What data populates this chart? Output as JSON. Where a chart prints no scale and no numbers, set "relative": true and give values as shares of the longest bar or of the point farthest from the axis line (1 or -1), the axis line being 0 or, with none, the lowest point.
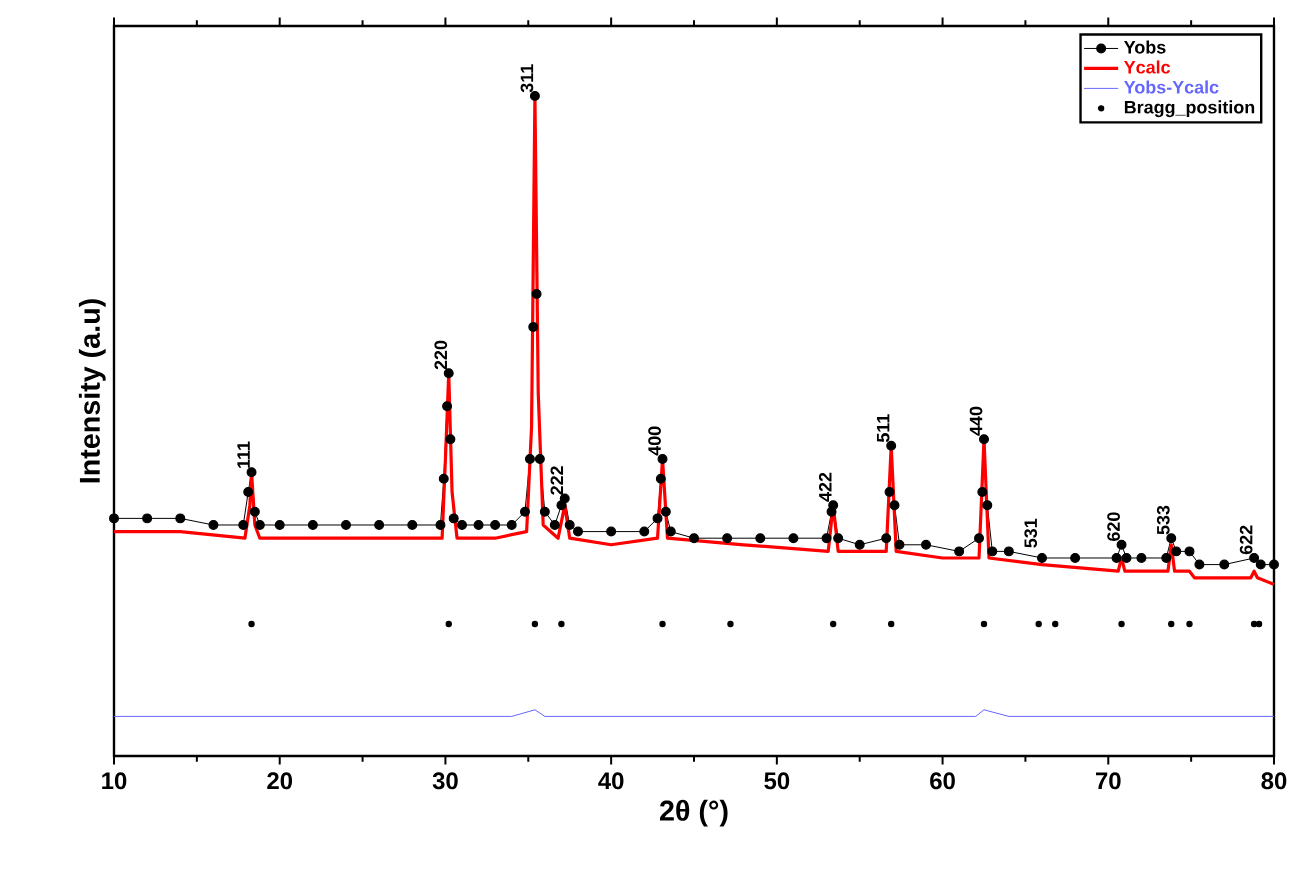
{
  "chart_data": {
    "type": "line",
    "relative": true,
    "xlabel": "2θ (°)",
    "ylabel": "Intensity (a.u)",
    "xlim": [
      10,
      80
    ],
    "xticks": [
      10,
      20,
      30,
      40,
      50,
      60,
      70,
      80
    ],
    "legend": "top right",
    "series": [
      {
        "name": "Yobs",
        "marker": "circle",
        "color": "#000000",
        "x": [
          10,
          12,
          14,
          16,
          17.8,
          18.1,
          18.3,
          18.5,
          18.8,
          20,
          22,
          24,
          26,
          28,
          29.7,
          29.9,
          30.1,
          30.2,
          30.3,
          30.5,
          31,
          32,
          33,
          34,
          34.8,
          35.1,
          35.3,
          35.4,
          35.5,
          35.7,
          36,
          36.6,
          37.0,
          37.2,
          37.5,
          38,
          40,
          42,
          42.8,
          43.0,
          43.1,
          43.3,
          43.6,
          45,
          47,
          49,
          51,
          53.0,
          53.3,
          53.4,
          53.7,
          55,
          56.6,
          56.8,
          56.9,
          57.1,
          57.4,
          59,
          61,
          62.2,
          62.4,
          62.5,
          62.7,
          63.0,
          64,
          66,
          68,
          70.5,
          70.8,
          71.1,
          72,
          73.5,
          73.8,
          74.1,
          74.9,
          75.5,
          77,
          78.8,
          79.2,
          80
        ],
        "values": [
          0.36,
          0.36,
          0.36,
          0.35,
          0.35,
          0.4,
          0.43,
          0.37,
          0.35,
          0.35,
          0.35,
          0.35,
          0.35,
          0.35,
          0.35,
          0.42,
          0.53,
          0.58,
          0.48,
          0.36,
          0.35,
          0.35,
          0.35,
          0.35,
          0.37,
          0.45,
          0.65,
          1.0,
          0.7,
          0.45,
          0.37,
          0.35,
          0.38,
          0.39,
          0.35,
          0.34,
          0.34,
          0.34,
          0.36,
          0.42,
          0.45,
          0.37,
          0.34,
          0.33,
          0.33,
          0.33,
          0.33,
          0.33,
          0.37,
          0.38,
          0.33,
          0.32,
          0.33,
          0.4,
          0.47,
          0.38,
          0.32,
          0.32,
          0.31,
          0.33,
          0.4,
          0.48,
          0.38,
          0.31,
          0.31,
          0.3,
          0.3,
          0.3,
          0.32,
          0.3,
          0.3,
          0.3,
          0.33,
          0.31,
          0.31,
          0.29,
          0.29,
          0.3,
          0.29,
          0.29
        ]
      },
      {
        "name": "Ycalc",
        "color": "#ff0000",
        "x": [
          10,
          14,
          17.9,
          18.2,
          18.3,
          18.5,
          18.8,
          22,
          26,
          29.8,
          30.0,
          30.2,
          30.4,
          30.7,
          33,
          34.9,
          35.2,
          35.4,
          35.6,
          35.9,
          36.8,
          37.2,
          37.5,
          40,
          42.8,
          43.1,
          43.4,
          48,
          53.1,
          53.4,
          53.7,
          56.6,
          56.9,
          57.2,
          60,
          62.2,
          62.5,
          62.8,
          66,
          70.6,
          70.8,
          71.0,
          73.6,
          73.8,
          74.0,
          74.9,
          75.2,
          78.6,
          78.8,
          79.0,
          80
        ],
        "values": [
          0.34,
          0.34,
          0.33,
          0.38,
          0.43,
          0.35,
          0.33,
          0.33,
          0.33,
          0.33,
          0.45,
          0.58,
          0.4,
          0.33,
          0.33,
          0.34,
          0.5,
          1.0,
          0.55,
          0.35,
          0.33,
          0.38,
          0.33,
          0.32,
          0.33,
          0.45,
          0.33,
          0.32,
          0.31,
          0.38,
          0.31,
          0.31,
          0.47,
          0.31,
          0.3,
          0.3,
          0.48,
          0.3,
          0.29,
          0.28,
          0.3,
          0.28,
          0.28,
          0.32,
          0.28,
          0.28,
          0.27,
          0.27,
          0.28,
          0.27,
          0.26
        ]
      },
      {
        "name": "Yobs-Ycalc",
        "color": "#6666ff",
        "x": [
          10,
          12,
          14,
          16,
          18,
          20,
          22,
          24,
          26,
          28,
          30,
          32,
          34,
          35.4,
          36,
          38,
          40,
          42,
          44,
          46,
          48,
          50,
          52,
          54,
          56,
          58,
          60,
          62,
          62.5,
          64,
          66,
          68,
          70,
          72,
          74,
          76,
          78,
          80
        ],
        "values": [
          0.06,
          0.06,
          0.06,
          0.06,
          0.06,
          0.06,
          0.06,
          0.06,
          0.06,
          0.06,
          0.06,
          0.06,
          0.06,
          0.07,
          0.06,
          0.06,
          0.06,
          0.06,
          0.06,
          0.06,
          0.06,
          0.06,
          0.06,
          0.06,
          0.06,
          0.06,
          0.06,
          0.06,
          0.07,
          0.06,
          0.06,
          0.06,
          0.06,
          0.06,
          0.06,
          0.06,
          0.06,
          0.06
        ]
      },
      {
        "name": "Bragg_position",
        "type": "scatter",
        "marker": "circle",
        "color": "#000000",
        "x": [
          18.3,
          30.2,
          35.4,
          37.0,
          43.1,
          47.2,
          53.4,
          56.9,
          62.5,
          65.8,
          66.8,
          70.8,
          73.8,
          74.9,
          78.8,
          79.1
        ],
        "values": [
          0.2,
          0.2,
          0.2,
          0.2,
          0.2,
          0.2,
          0.2,
          0.2,
          0.2,
          0.2,
          0.2,
          0.2,
          0.2,
          0.2,
          0.2,
          0.2
        ]
      }
    ],
    "annotations": [
      {
        "text": "111",
        "x": 18.3,
        "y": 0.43
      },
      {
        "text": "220",
        "x": 30.2,
        "y": 0.58
      },
      {
        "text": "311",
        "x": 35.4,
        "y": 1.0
      },
      {
        "text": "222",
        "x": 37.2,
        "y": 0.39
      },
      {
        "text": "400",
        "x": 43.1,
        "y": 0.45
      },
      {
        "text": "422",
        "x": 53.4,
        "y": 0.38
      },
      {
        "text": "511",
        "x": 56.9,
        "y": 0.47
      },
      {
        "text": "440",
        "x": 62.5,
        "y": 0.48
      },
      {
        "text": "531",
        "x": 65.8,
        "y": 0.31
      },
      {
        "text": "620",
        "x": 70.8,
        "y": 0.32
      },
      {
        "text": "533",
        "x": 73.8,
        "y": 0.33
      },
      {
        "text": "622",
        "x": 78.8,
        "y": 0.3
      }
    ]
  }
}
